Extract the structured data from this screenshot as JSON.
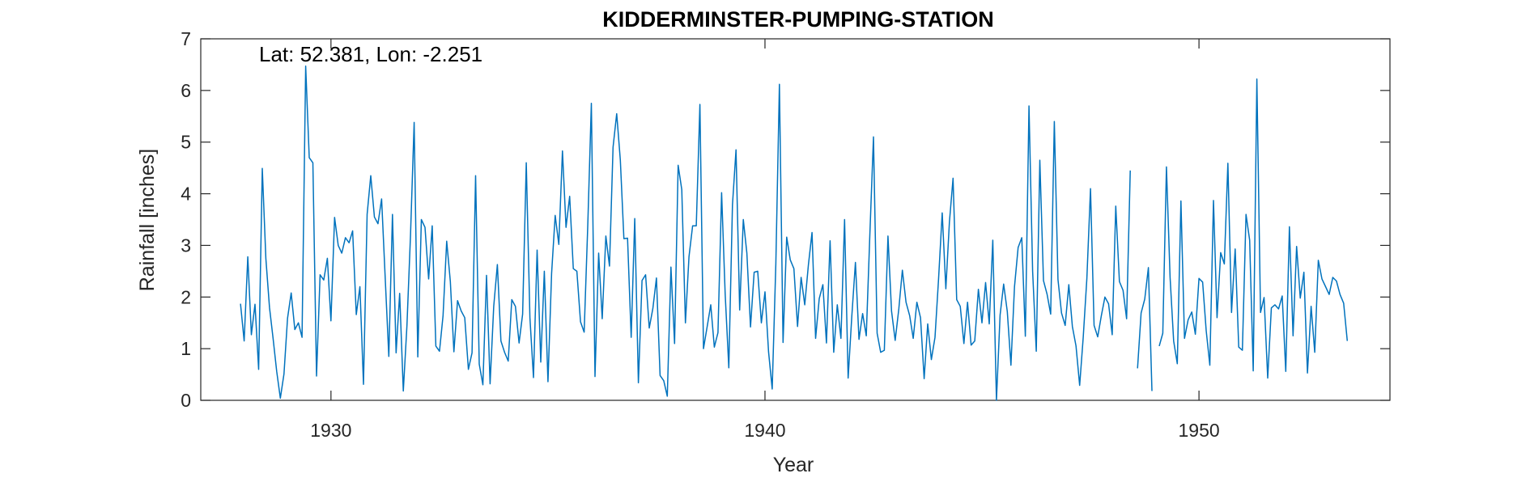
{
  "chart_data": {
    "type": "line",
    "title": "KIDDERMINSTER-PUMPING-STATION",
    "annotation": "Lat: 52.381, Lon: -2.251",
    "xlabel": "Year",
    "ylabel": "Rainfall [inches]",
    "xlim": [
      1927,
      1954.4
    ],
    "ylim": [
      0,
      7
    ],
    "x_ticks": [
      1930,
      1940,
      1950
    ],
    "y_ticks": [
      0,
      1,
      2,
      3,
      4,
      5,
      6,
      7
    ],
    "grid": false,
    "box": true,
    "start": "1927-12",
    "series": [
      {
        "color": "#0072BD",
        "values": [
          1.87,
          1.15,
          2.78,
          1.27,
          1.86,
          0.6,
          4.49,
          2.75,
          1.8,
          1.19,
          0.56,
          0.04,
          0.51,
          1.59,
          2.08,
          1.37,
          1.5,
          1.22,
          6.47,
          4.7,
          4.6,
          0.47,
          2.43,
          2.33,
          2.75,
          1.54,
          3.54,
          3.0,
          2.85,
          3.15,
          3.05,
          3.28,
          1.66,
          2.2,
          0.31,
          3.6,
          4.35,
          3.55,
          3.42,
          3.9,
          2.35,
          0.85,
          3.6,
          0.92,
          2.07,
          0.18,
          1.45,
          3.2,
          5.38,
          0.84,
          3.5,
          3.35,
          2.35,
          3.38,
          1.05,
          0.95,
          1.64,
          3.08,
          2.3,
          0.94,
          1.93,
          1.73,
          1.6,
          0.6,
          0.92,
          4.35,
          0.7,
          0.3,
          2.42,
          0.32,
          1.82,
          2.63,
          1.15,
          0.93,
          0.76,
          1.95,
          1.82,
          1.11,
          1.67,
          4.6,
          1.6,
          0.44,
          2.91,
          0.74,
          2.5,
          0.36,
          2.46,
          3.58,
          3.02,
          4.83,
          3.35,
          3.95,
          2.55,
          2.5,
          1.52,
          1.32,
          3.4,
          5.75,
          0.46,
          2.85,
          1.58,
          3.18,
          2.6,
          4.9,
          5.55,
          4.65,
          3.13,
          3.14,
          1.22,
          3.52,
          0.34,
          2.32,
          2.43,
          1.4,
          1.78,
          2.37,
          0.48,
          0.38,
          0.08,
          2.58,
          1.1,
          4.55,
          4.08,
          1.5,
          2.78,
          3.38,
          3.38,
          5.73,
          1.0,
          1.42,
          1.85,
          1.03,
          1.31,
          4.02,
          2.06,
          0.63,
          3.78,
          4.85,
          1.75,
          3.5,
          2.85,
          1.42,
          2.48,
          2.5,
          1.5,
          2.1,
          0.94,
          0.22,
          2.65,
          6.12,
          1.12,
          3.16,
          2.72,
          2.55,
          1.43,
          2.38,
          1.85,
          2.62,
          3.25,
          1.2,
          1.97,
          2.24,
          1.11,
          3.09,
          0.93,
          1.85,
          1.2,
          3.5,
          0.43,
          1.62,
          2.67,
          1.18,
          1.68,
          1.25,
          3.2,
          5.1,
          1.3,
          0.93,
          0.97,
          3.18,
          1.73,
          1.16,
          1.77,
          2.52,
          1.9,
          1.64,
          1.2,
          1.9,
          1.6,
          0.42,
          1.48,
          0.79,
          1.22,
          2.35,
          3.63,
          2.16,
          3.45,
          4.3,
          1.95,
          1.82,
          1.1,
          1.9,
          1.07,
          1.15,
          2.15,
          1.5,
          2.28,
          1.48,
          3.1,
          0.0,
          1.65,
          2.25,
          1.72,
          0.68,
          2.2,
          2.96,
          3.15,
          1.24,
          5.7,
          2.5,
          0.95,
          4.65,
          2.32,
          2.05,
          1.67,
          5.4,
          2.34,
          1.69,
          1.45,
          2.24,
          1.43,
          1.05,
          0.29,
          1.22,
          2.36,
          4.1,
          1.45,
          1.23,
          1.64,
          2.0,
          1.87,
          1.27,
          3.76,
          2.3,
          2.13,
          1.58,
          4.45,
          null,
          0.62,
          1.69,
          1.96,
          2.57,
          0.18,
          null,
          1.05,
          1.3,
          4.52,
          2.38,
          1.15,
          0.71,
          3.86,
          1.2,
          1.56,
          1.71,
          1.28,
          2.36,
          2.29,
          1.35,
          0.68,
          3.87,
          1.6,
          2.86,
          2.64,
          4.59,
          1.7,
          2.93,
          1.03,
          0.97,
          3.6,
          3.1,
          0.57,
          6.22,
          1.7,
          1.99,
          0.43,
          1.79,
          1.85,
          1.77,
          2.02,
          0.56,
          3.36,
          1.25,
          2.98,
          1.98,
          2.48,
          0.53,
          1.82,
          0.93,
          2.71,
          2.35,
          2.2,
          2.05,
          2.38,
          2.31,
          2.05,
          1.88,
          1.15
        ]
      }
    ]
  }
}
